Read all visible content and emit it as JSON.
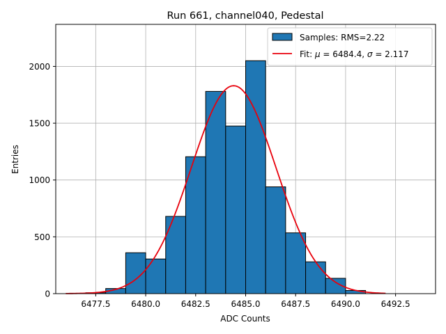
{
  "chart_data": {
    "type": "bar",
    "title": "Run 661, channel040, Pedestal",
    "xlabel": "ADC Counts",
    "ylabel": "Entries",
    "xlim": [
      6475.5,
      6494.5
    ],
    "ylim": [
      0,
      2370
    ],
    "grid": true,
    "legend_placement": "top-right",
    "xticks": [
      6477.5,
      6480.0,
      6482.5,
      6485.0,
      6487.5,
      6490.0,
      6492.5
    ],
    "xtick_labels": [
      "6477.5",
      "6480.0",
      "6482.5",
      "6485.0",
      "6487.5",
      "6490.0",
      "6492.5"
    ],
    "yticks": [
      0,
      500,
      1000,
      1500,
      2000
    ],
    "ytick_labels": [
      "0",
      "500",
      "1000",
      "1500",
      "2000"
    ],
    "histogram": {
      "name": "Samples: RMS=2.22",
      "color": "#1f77b4",
      "bin_edges": [
        6477,
        6478,
        6479,
        6480,
        6481,
        6482,
        6483,
        6484,
        6485,
        6486,
        6487,
        6488,
        6489,
        6490,
        6491
      ],
      "counts": [
        8,
        45,
        360,
        305,
        680,
        1205,
        1780,
        1475,
        2050,
        940,
        535,
        280,
        135,
        28
      ]
    },
    "fit": {
      "name_prefix": "Fit: ",
      "mu_symbol": "μ",
      "mu_text": " = 6484.4, ",
      "sigma_symbol": "σ",
      "sigma_text": " = 2.117",
      "color": "#e8000b",
      "mu": 6484.4,
      "sigma": 2.117,
      "amplitude": 1830,
      "x_range": [
        6476,
        6492
      ]
    }
  }
}
